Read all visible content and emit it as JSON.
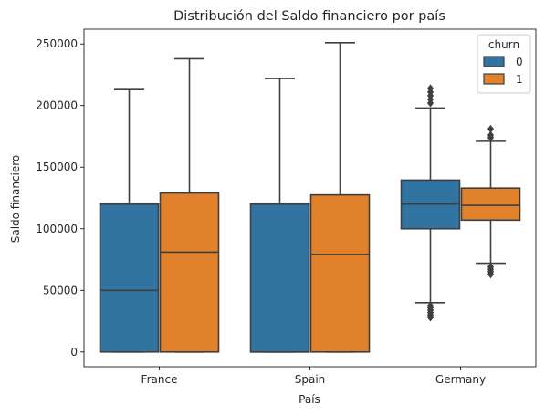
{
  "chart_data": {
    "type": "boxplot",
    "title": "Distribución del Saldo financiero por país",
    "xlabel": "País",
    "ylabel": "Saldo financiero",
    "categories": [
      "France",
      "Spain",
      "Germany"
    ],
    "ylim": [
      -12000,
      262000
    ],
    "yticks": [
      0,
      50000,
      100000,
      150000,
      200000,
      250000
    ],
    "ytick_labels": [
      "0",
      "50000",
      "100000",
      "150000",
      "200000",
      "250000"
    ],
    "grid": false,
    "legend": {
      "title": "churn",
      "position": "top-right"
    },
    "series": [
      {
        "name": "0",
        "color": "#3274a1",
        "boxes": [
          {
            "q1": 0,
            "median": 50000,
            "q3": 120000,
            "whisker_low": 0,
            "whisker_high": 213000,
            "outliers": []
          },
          {
            "q1": 0,
            "median": 0,
            "q3": 120000,
            "whisker_low": 0,
            "whisker_high": 222000,
            "outliers": []
          },
          {
            "q1": 100000,
            "median": 120000,
            "q3": 139500,
            "whisker_low": 40000,
            "whisker_high": 198000,
            "outliers": [
              28000,
              30000,
              32000,
              34000,
              36000,
              37500,
              202000,
              205000,
              208000,
              211000,
              214000
            ]
          }
        ]
      },
      {
        "name": "1",
        "color": "#e1812c",
        "boxes": [
          {
            "q1": 0,
            "median": 81000,
            "q3": 129000,
            "whisker_low": 0,
            "whisker_high": 238000,
            "outliers": []
          },
          {
            "q1": 0,
            "median": 79000,
            "q3": 127500,
            "whisker_low": 0,
            "whisker_high": 251000,
            "outliers": []
          },
          {
            "q1": 107000,
            "median": 119000,
            "q3": 133000,
            "whisker_low": 72000,
            "whisker_high": 171000,
            "outliers": [
              63000,
              65000,
              67000,
              69000,
              174000,
              176000,
              181000
            ]
          }
        ]
      }
    ]
  }
}
